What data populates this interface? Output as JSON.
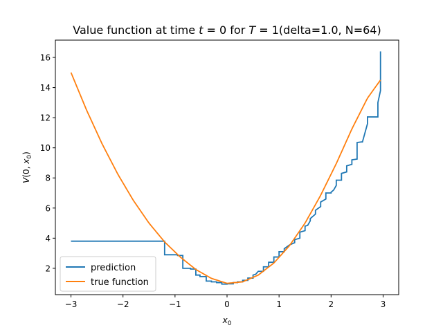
{
  "chart_data": {
    "type": "line",
    "title_plain": "Value function at time ",
    "title_t": "t",
    "title_eq0": " = 0 for ",
    "title_T": "T",
    "title_eq1": " = 1(delta=1.0, N=64)",
    "xlabel_base": "x",
    "xlabel_sub": "0",
    "ylabel_V": "V",
    "ylabel_open": "(0, ",
    "ylabel_x": "x",
    "ylabel_sub": "0",
    "ylabel_close": ")",
    "xlim": [
      -3.3,
      3.3
    ],
    "ylim": [
      0.25,
      17.15
    ],
    "xticks": [
      -3,
      -2,
      -1,
      0,
      1,
      2,
      3
    ],
    "xtick_labels": [
      "−3",
      "−2",
      "−1",
      "0",
      "1",
      "2",
      "3"
    ],
    "yticks": [
      2,
      4,
      6,
      8,
      10,
      12,
      14,
      16
    ],
    "ytick_labels": [
      "2",
      "4",
      "6",
      "8",
      "10",
      "12",
      "14",
      "16"
    ],
    "grid": false,
    "legend_position": "lower-left",
    "colors": {
      "prediction": "#1f77b4",
      "true_function": "#ff7f0e"
    },
    "series": [
      {
        "name": "prediction",
        "x": [
          -3.0,
          -1.2,
          -1.2,
          -0.95,
          -0.95,
          -0.85,
          -0.85,
          -0.7,
          -0.7,
          -0.6,
          -0.6,
          -0.52,
          -0.52,
          -0.4,
          -0.4,
          -0.3,
          -0.3,
          -0.2,
          -0.2,
          -0.1,
          -0.1,
          0.0,
          0.0,
          0.12,
          0.12,
          0.2,
          0.2,
          0.3,
          0.3,
          0.4,
          0.4,
          0.5,
          0.5,
          0.55,
          0.6,
          0.7,
          0.7,
          0.8,
          0.8,
          0.9,
          0.9,
          1.0,
          1.0,
          1.1,
          1.1,
          1.2,
          1.3,
          1.3,
          1.4,
          1.4,
          1.5,
          1.5,
          1.55,
          1.6,
          1.6,
          1.7,
          1.7,
          1.8,
          1.8,
          1.9,
          1.9,
          2.0,
          2.0,
          2.05,
          2.1,
          2.1,
          2.2,
          2.2,
          2.3,
          2.3,
          2.4,
          2.4,
          2.5,
          2.5,
          2.6,
          2.6,
          2.7,
          2.7,
          2.9,
          2.9,
          2.95,
          2.95
        ],
        "y": [
          3.8,
          3.8,
          2.9,
          2.9,
          2.85,
          2.85,
          2.0,
          2.0,
          1.95,
          1.95,
          1.55,
          1.55,
          1.45,
          1.45,
          1.15,
          1.15,
          1.1,
          1.1,
          1.05,
          1.05,
          0.95,
          0.95,
          0.97,
          0.97,
          1.05,
          1.05,
          1.1,
          1.1,
          1.2,
          1.2,
          1.35,
          1.35,
          1.55,
          1.6,
          1.8,
          1.8,
          2.1,
          2.1,
          2.4,
          2.4,
          2.75,
          2.75,
          3.1,
          3.1,
          3.3,
          3.55,
          3.7,
          3.9,
          4.0,
          4.4,
          4.5,
          4.8,
          4.85,
          5.15,
          5.3,
          5.6,
          5.85,
          6.1,
          6.4,
          6.6,
          7.0,
          7.0,
          7.05,
          7.2,
          7.5,
          7.85,
          7.85,
          8.3,
          8.4,
          8.8,
          8.9,
          9.2,
          9.25,
          10.35,
          10.4,
          10.35,
          11.6,
          12.05,
          12.05,
          13.0,
          13.8,
          16.4
        ]
      },
      {
        "name": "true function",
        "formula_samples_x": [
          -3.0,
          -2.7,
          -2.4,
          -2.1,
          -1.8,
          -1.5,
          -1.2,
          -0.9,
          -0.6,
          -0.3,
          0.0,
          0.3,
          0.6,
          0.9,
          1.2,
          1.5,
          1.8,
          2.1,
          2.4,
          2.7,
          2.95
        ],
        "formula_samples_y": [
          15.0,
          12.5,
          10.25,
          8.25,
          6.5,
          5.0,
          3.75,
          2.75,
          1.92,
          1.33,
          1.0,
          1.1,
          1.55,
          2.35,
          3.5,
          5.0,
          6.85,
          8.95,
          11.25,
          13.3,
          14.5
        ]
      }
    ]
  }
}
